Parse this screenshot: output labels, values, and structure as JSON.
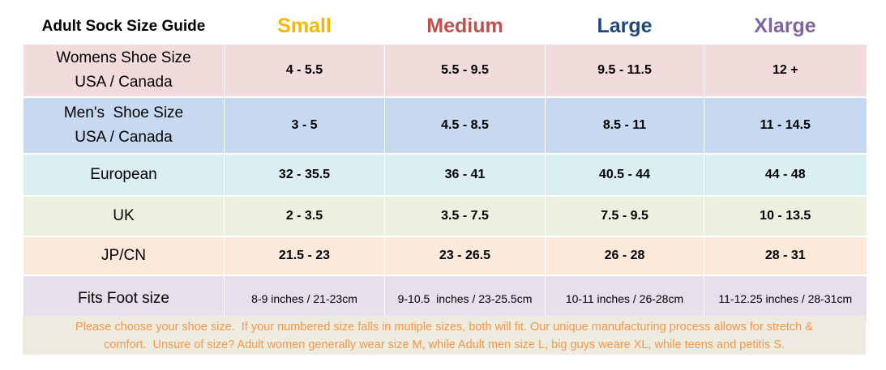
{
  "header": {
    "title": "Adult Sock Size Guide",
    "sizes": [
      {
        "label": "Small",
        "color": "#f5b800"
      },
      {
        "label": "Medium",
        "color": "#c0504d"
      },
      {
        "label": "Large",
        "color": "#1f497d"
      },
      {
        "label": "Xlarge",
        "color": "#8064a2"
      }
    ]
  },
  "rows": [
    {
      "label_line1": "Womens Shoe Size",
      "label_line2": "USA / Canada",
      "values": [
        "4 - 5.5",
        "5.5 - 9.5",
        "9.5 - 11.5",
        "12 +"
      ]
    },
    {
      "label_line1": "Men's  Shoe Size",
      "label_line2": "USA / Canada",
      "values": [
        "3 - 5",
        "4.5 - 8.5",
        "8.5 - 11",
        "11 - 14.5"
      ]
    },
    {
      "label_line1": "European",
      "label_line2": "",
      "values": [
        "32 - 35.5",
        "36 - 41",
        "40.5 - 44",
        "44 - 48"
      ]
    },
    {
      "label_line1": "UK",
      "label_line2": "",
      "values": [
        "2 - 3.5",
        "3.5 - 7.5",
        "7.5 - 9.5",
        "10 - 13.5"
      ]
    },
    {
      "label_line1": "JP/CN",
      "label_line2": "",
      "values": [
        "21.5 - 23",
        "23 - 26.5",
        "26 - 28",
        "28 - 31"
      ]
    },
    {
      "label_line1": "Fits Foot size",
      "label_line2": "",
      "values": [
        "8-9 inches / 21-23cm",
        "9-10.5  inches / 23-25.5cm",
        "10-11 inches / 26-28cm",
        "11-12.25 inches / 28-31cm"
      ]
    }
  ],
  "note": {
    "line1": "Please choose your shoe size.  If your numbered size falls in mutiple sizes, both will fit. Our unique manufacturing process allows for stretch &",
    "line2": "comfort.  Unsure of size? Adult women generally wear size M, while Adult men size L, big guys weare XL, while teens and petitis S."
  }
}
